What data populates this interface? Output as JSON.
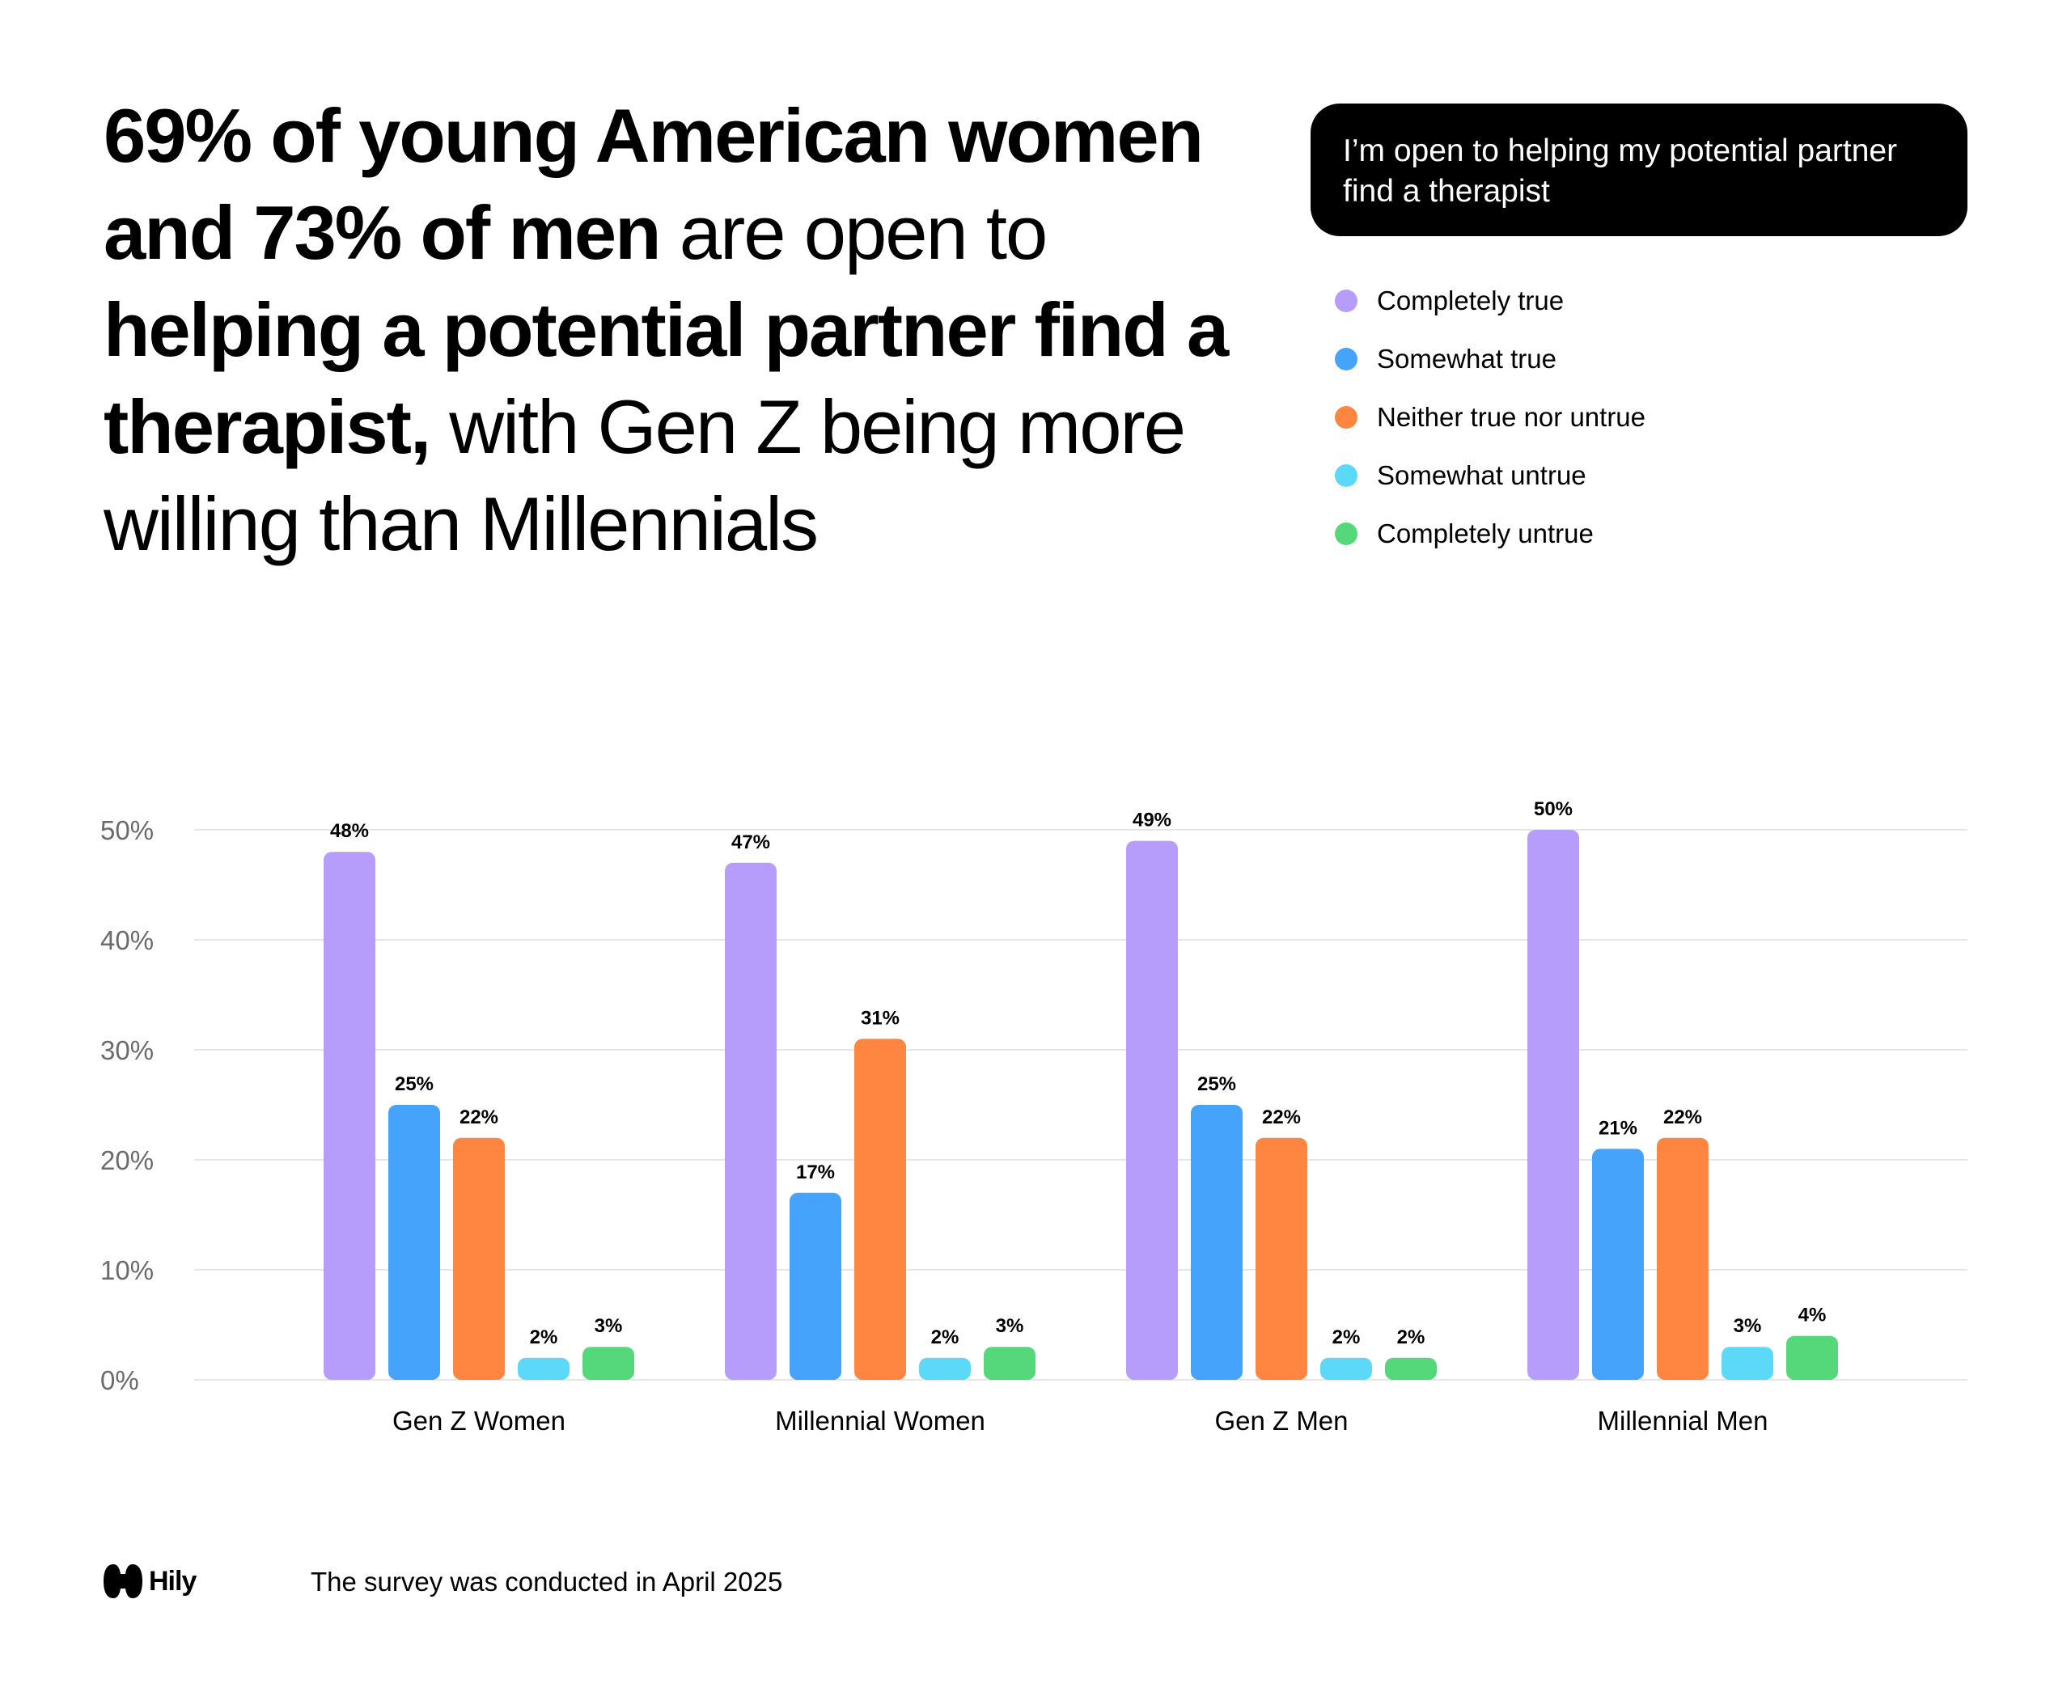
{
  "headline": {
    "bold_1": "69% of young American women and 73% of men",
    "regular_1": " are open to ",
    "bold_2": "helping a potential partner find a therapist,",
    "regular_2": " with Gen Z being more willing than Millennials"
  },
  "question": "I’m open to helping my potential partner find a therapist",
  "colors": {
    "completely_true": "#B69CFB",
    "somewhat_true": "#46A3FB",
    "neither": "#FE8640",
    "somewhat_untrue": "#5CD8F8",
    "completely_untrue": "#55D87A",
    "grid": "#e6e6e6",
    "axis_text": "#6b6b6b"
  },
  "legend": [
    {
      "label": "Completely true",
      "color": "#B69CFB"
    },
    {
      "label": "Somewhat true",
      "color": "#46A3FB"
    },
    {
      "label": "Neither true nor untrue",
      "color": "#FE8640"
    },
    {
      "label": "Somewhat untrue",
      "color": "#5CD8F8"
    },
    {
      "label": "Completely untrue",
      "color": "#55D87A"
    }
  ],
  "chart_data": {
    "type": "bar",
    "title": "I’m open to helping my potential partner find a therapist",
    "xlabel": "",
    "ylabel": "",
    "ylim": [
      0,
      50
    ],
    "yticks": [
      0,
      10,
      20,
      30,
      40,
      50
    ],
    "ytick_labels": [
      "0%",
      "10%",
      "20%",
      "30%",
      "40%",
      "50%"
    ],
    "categories": [
      "Gen Z Women",
      "Millennial Women",
      "Gen Z Men",
      "Millennial Men"
    ],
    "series": [
      {
        "name": "Completely true",
        "color": "#B69CFB",
        "values": [
          48,
          47,
          49,
          50
        ],
        "labels": [
          "48%",
          "47%",
          "49%",
          "50%"
        ]
      },
      {
        "name": "Somewhat true",
        "color": "#46A3FB",
        "values": [
          25,
          17,
          25,
          21
        ],
        "labels": [
          "25%",
          "17%",
          "25%",
          "21%"
        ]
      },
      {
        "name": "Neither true nor untrue",
        "color": "#FE8640",
        "values": [
          22,
          31,
          22,
          22
        ],
        "labels": [
          "22%",
          "31%",
          "22%",
          "22%"
        ]
      },
      {
        "name": "Somewhat untrue",
        "color": "#5CD8F8",
        "values": [
          2,
          2,
          2,
          3
        ],
        "labels": [
          "2%",
          "2%",
          "2%",
          "3%"
        ]
      },
      {
        "name": "Completely untrue",
        "color": "#55D87A",
        "values": [
          3,
          3,
          2,
          4
        ],
        "labels": [
          "3%",
          "3%",
          "2%",
          "4%"
        ]
      }
    ],
    "legend_position": "top-right",
    "grid": true
  },
  "footer": {
    "logo_text": "Hily",
    "note": "The survey was conducted in April 2025"
  }
}
